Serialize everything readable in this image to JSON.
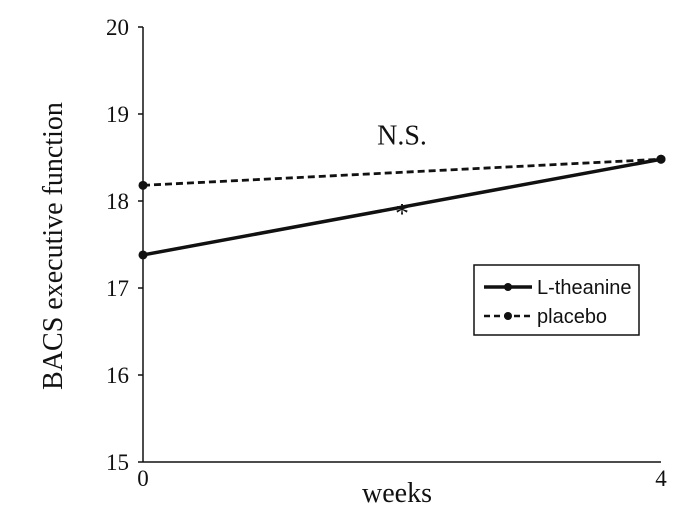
{
  "chart_data": {
    "type": "line",
    "x": [
      0,
      4
    ],
    "xticks": [
      "0",
      "4"
    ],
    "xlabel": "weeks",
    "ylabel": "BACS executive function",
    "ylim": [
      15,
      20
    ],
    "yticks": [
      "15",
      "16",
      "17",
      "18",
      "19",
      "20"
    ],
    "grid": false,
    "legend_position": "right",
    "series": [
      {
        "name": "L-theanine",
        "values": [
          17.38,
          18.48
        ],
        "line_style": "solid",
        "color": "#111111"
      },
      {
        "name": "placebo",
        "values": [
          18.18,
          18.48
        ],
        "line_style": "dashed",
        "color": "#111111"
      }
    ],
    "annotations": [
      {
        "text": "N.S.",
        "x": 2.0,
        "y": 18.65
      },
      {
        "text": "*",
        "x": 2.0,
        "y": 17.75
      }
    ]
  }
}
